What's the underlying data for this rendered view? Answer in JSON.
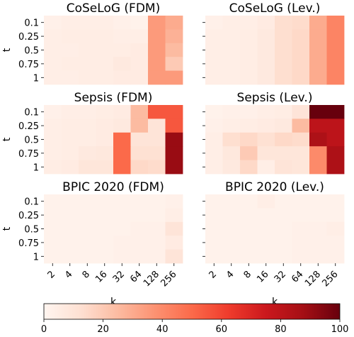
{
  "chart_data": {
    "type": "heatmap",
    "x_tick_labels": [
      "2",
      "4",
      "8",
      "16",
      "32",
      "64",
      "128",
      "256"
    ],
    "y_tick_labels": [
      "0.1",
      "0.25",
      "0.5",
      "0.75",
      "1"
    ],
    "xlabel": "k",
    "ylabel": "t",
    "colorbar": {
      "range": [
        0,
        100
      ],
      "tick_labels": [
        "0",
        "20",
        "40",
        "60",
        "80",
        "100"
      ],
      "colormap": "Reds",
      "colors": [
        "#fff5f0",
        "#fee0d2",
        "#fcbba1",
        "#fc9272",
        "#fb6a4a",
        "#ef3b2c",
        "#cb181d",
        "#a50f15",
        "#67000d"
      ]
    },
    "panels": [
      {
        "title": "CoSeLoG (FDM)",
        "values": [
          [
            3,
            4,
            4,
            4,
            3,
            2,
            35,
            30
          ],
          [
            4,
            5,
            5,
            5,
            4,
            4,
            35,
            28
          ],
          [
            4,
            4,
            5,
            5,
            5,
            6,
            35,
            25
          ],
          [
            4,
            5,
            5,
            5,
            7,
            6,
            35,
            20
          ],
          [
            4,
            4,
            5,
            5,
            6,
            6,
            35,
            35
          ]
        ]
      },
      {
        "title": "CoSeLoG (Lev.)",
        "values": [
          [
            3,
            4,
            4,
            6,
            13,
            14,
            30,
            42
          ],
          [
            4,
            4,
            5,
            7,
            13,
            15,
            30,
            42
          ],
          [
            4,
            4,
            5,
            7,
            13,
            15,
            30,
            42
          ],
          [
            4,
            4,
            5,
            7,
            13,
            15,
            30,
            42
          ],
          [
            4,
            4,
            5,
            7,
            13,
            15,
            30,
            42
          ]
        ]
      },
      {
        "title": "Sepsis (FDM)",
        "values": [
          [
            3,
            4,
            4,
            5,
            6,
            25,
            55,
            55
          ],
          [
            4,
            5,
            5,
            6,
            7,
            25,
            10,
            55
          ],
          [
            4,
            5,
            5,
            6,
            50,
            10,
            10,
            90
          ],
          [
            4,
            5,
            7,
            8,
            50,
            12,
            12,
            90
          ],
          [
            5,
            6,
            9,
            9,
            50,
            15,
            14,
            90
          ]
        ]
      },
      {
        "title": "Sepsis (Lev.)",
        "values": [
          [
            2,
            3,
            3,
            4,
            5,
            10,
            100,
            100
          ],
          [
            3,
            4,
            5,
            6,
            7,
            25,
            80,
            80
          ],
          [
            4,
            13,
            15,
            12,
            15,
            14,
            85,
            80
          ],
          [
            4,
            8,
            20,
            9,
            9,
            9,
            40,
            85
          ],
          [
            4,
            7,
            15,
            4,
            10,
            9,
            40,
            85
          ]
        ]
      },
      {
        "title": "BPIC 2020 (FDM)",
        "values": [
          [
            2,
            2,
            2,
            2,
            2,
            2,
            2,
            3
          ],
          [
            2,
            2,
            2,
            2,
            2,
            2,
            2,
            4
          ],
          [
            2,
            2,
            2,
            2,
            2,
            3,
            3,
            10
          ],
          [
            2,
            2,
            2,
            2,
            3,
            3,
            3,
            6
          ],
          [
            2,
            2,
            2,
            2,
            3,
            3,
            3,
            10
          ]
        ]
      },
      {
        "title": "BPIC 2020 (Lev.)",
        "values": [
          [
            2,
            2,
            2,
            4,
            2,
            2,
            2,
            2
          ],
          [
            2,
            2,
            2,
            2,
            2,
            2,
            2,
            2
          ],
          [
            2,
            2,
            2,
            2,
            2,
            3,
            3,
            4
          ],
          [
            2,
            2,
            2,
            2,
            2,
            3,
            3,
            3
          ],
          [
            2,
            2,
            2,
            2,
            2,
            3,
            3,
            3
          ]
        ]
      }
    ]
  }
}
